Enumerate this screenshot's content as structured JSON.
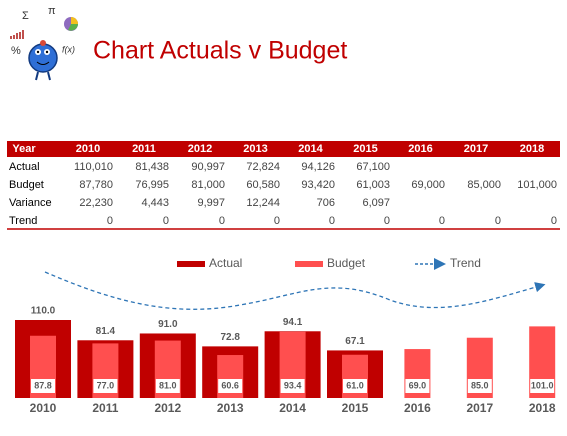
{
  "header": {
    "title": "Chart Actuals v Budget",
    "logo_symbols": [
      "Σ",
      "π",
      "%",
      "f(x)"
    ]
  },
  "table": {
    "header": [
      "Year",
      "2010",
      "2011",
      "2012",
      "2013",
      "2014",
      "2015",
      "2016",
      "2017",
      "2018"
    ],
    "rows": [
      [
        "Actual",
        "110,010",
        "81,438",
        "90,997",
        "72,824",
        "94,126",
        "67,100"
      ],
      [
        "Budget",
        "87,780",
        "76,995",
        "81,000",
        "60,580",
        "93,420",
        "61,003",
        "69,000",
        "85,000",
        "101,000"
      ],
      [
        "Variance",
        "22,230",
        "4,443",
        "9,997",
        "12,244",
        "706",
        "6,097"
      ],
      [
        "Trend",
        "0",
        "0",
        "0",
        "0",
        "0",
        "0",
        "0",
        "0",
        "0"
      ]
    ]
  },
  "chart_data": {
    "type": "bar",
    "categories": [
      "2010",
      "2011",
      "2012",
      "2013",
      "2014",
      "2015",
      "2016",
      "2017",
      "2018"
    ],
    "series": [
      {
        "name": "Actual",
        "color": "#c00000",
        "values": [
          110,
          81.4,
          91,
          72.8,
          94.1,
          67.1,
          null,
          null,
          null
        ],
        "value_labels": [
          "110.0",
          "81.4",
          "91.0",
          "72.8",
          "94.1",
          "67.1",
          null,
          null,
          null
        ]
      },
      {
        "name": "Budget",
        "color": "#ff4f4f",
        "values": [
          87.8,
          77,
          81,
          60.6,
          93.4,
          61,
          69,
          85,
          101
        ],
        "value_labels": [
          "87.8",
          "77.0",
          "81.0",
          "60.6",
          "93.4",
          "61.0",
          "69.0",
          "85.0",
          "101.0"
        ]
      },
      {
        "name": "Trend",
        "color": "#2e75b6"
      }
    ]
  }
}
